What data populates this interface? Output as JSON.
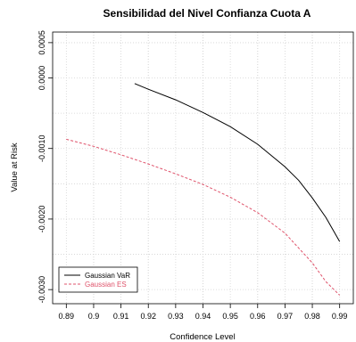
{
  "chart_data": {
    "type": "line",
    "title": "Sensibilidad del Nivel Confianza Cuota A",
    "xlabel": "Confidence Level",
    "ylabel": "Value at Risk",
    "xlim": [
      0.885,
      0.995
    ],
    "ylim": [
      -0.0032,
      0.00065
    ],
    "x_ticks": [
      "0.89",
      "0.9",
      "0.91",
      "0.92",
      "0.93",
      "0.94",
      "0.95",
      "0.96",
      "0.97",
      "0.98",
      "0.99"
    ],
    "y_ticks": [
      "-0.0030",
      "-0.0020",
      "-0.0010",
      "0.0000",
      "0.0005"
    ],
    "y_tick_values": [
      -0.003,
      -0.002,
      -0.001,
      0.0,
      0.0005
    ],
    "grid": true,
    "grid_x": [
      0.9,
      0.92,
      0.94,
      0.96,
      0.98
    ],
    "grid_y": [
      -0.0025,
      -0.0015,
      -0.0005,
      0.0005
    ],
    "legend_position": "bottom-left",
    "series": [
      {
        "name": "Gaussian VaR",
        "color": "#000000",
        "dash": "solid",
        "x": [
          0.915,
          0.92,
          0.93,
          0.94,
          0.95,
          0.96,
          0.97,
          0.975,
          0.98,
          0.985,
          0.99
        ],
        "values": [
          -8e-05,
          -0.00016,
          -0.00031,
          -0.00049,
          -0.00069,
          -0.00094,
          -0.00126,
          -0.00145,
          -0.0017,
          -0.00198,
          -0.00232
        ]
      },
      {
        "name": "Gaussian ES",
        "color": "#DF536B",
        "dash": "dashed",
        "x": [
          0.89,
          0.9,
          0.91,
          0.92,
          0.93,
          0.94,
          0.95,
          0.96,
          0.97,
          0.98,
          0.985,
          0.99
        ],
        "values": [
          -0.00087,
          -0.00097,
          -0.00109,
          -0.00122,
          -0.00136,
          -0.00151,
          -0.00169,
          -0.00191,
          -0.0022,
          -0.00262,
          -0.00289,
          -0.00308
        ]
      }
    ]
  }
}
